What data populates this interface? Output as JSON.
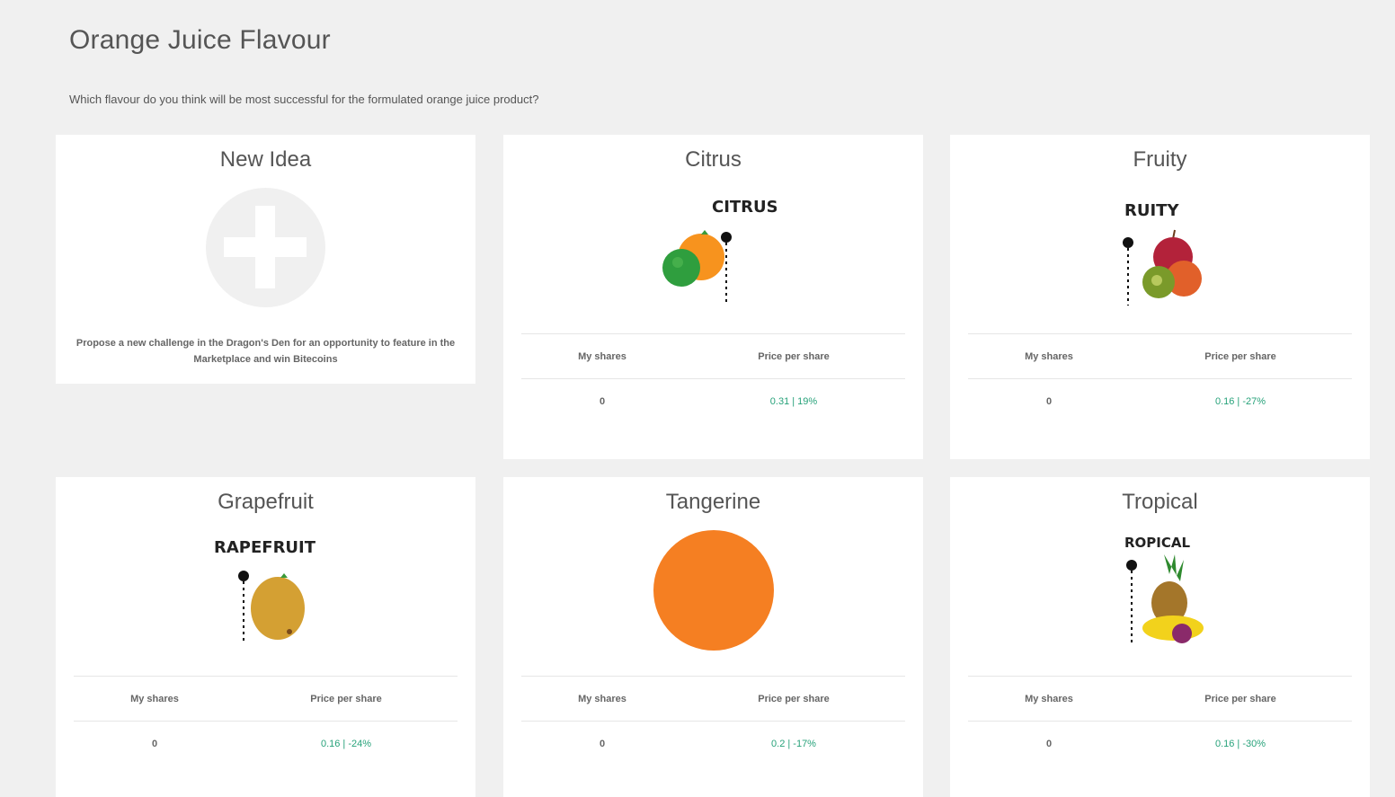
{
  "page": {
    "title": "Orange Juice Flavour",
    "question": "Which flavour do you think will be most successful for the formulated orange juice product?"
  },
  "new_idea": {
    "title": "New Idea",
    "description": "Propose a new challenge in the Dragon's Den for an opportunity to feature in the Marketplace and win Bitecoins",
    "icon": "plus-icon"
  },
  "labels": {
    "my_shares": "My shares",
    "price_per_share": "Price per share"
  },
  "cards": [
    {
      "title": "Citrus",
      "image_text": "CITRUS",
      "my_shares": "0",
      "price": "0.31 | 19%"
    },
    {
      "title": "Fruity",
      "image_text": "RUITY",
      "my_shares": "0",
      "price": "0.16 | -27%"
    },
    {
      "title": "Grapefruit",
      "image_text": "RAPEFRUIT",
      "my_shares": "0",
      "price": "0.16 | -24%"
    },
    {
      "title": "Tangerine",
      "image_text": "",
      "my_shares": "0",
      "price": "0.2 | -17%"
    },
    {
      "title": "Tropical",
      "image_text": "ROPICAL",
      "my_shares": "0",
      "price": "0.16 | -30%"
    }
  ],
  "colors": {
    "background": "#f0f0f0",
    "card": "#ffffff",
    "price_text": "#27a27a",
    "tangerine": "#f57f22"
  }
}
